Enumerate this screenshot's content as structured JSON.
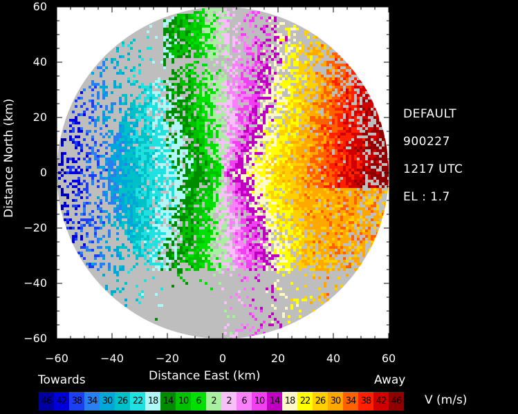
{
  "map": {
    "x_axis_label": "Distance East   (km)",
    "y_axis_label": "Distance North   (km)",
    "x_ticks": [
      "−60",
      "−40",
      "−20",
      "0",
      "20",
      "40",
      "60"
    ],
    "y_ticks": [
      "60",
      "40",
      "20",
      "0",
      "−20",
      "−40",
      "−60"
    ],
    "range_km": 60
  },
  "info": {
    "site": "DEFAULT",
    "date": "900227",
    "time": "1217 UTC",
    "elevation": "EL : 1.7"
  },
  "legend": {
    "towards_label": "Towards",
    "away_label": "Away",
    "units": "V   (m/s)",
    "entries": [
      {
        "label": "46",
        "color": "#0000a0"
      },
      {
        "label": "42",
        "color": "#0000d8"
      },
      {
        "label": "38",
        "color": "#1c40f0"
      },
      {
        "label": "34",
        "color": "#2880f0"
      },
      {
        "label": "30",
        "color": "#00a8d8"
      },
      {
        "label": "26",
        "color": "#00c0c8"
      },
      {
        "label": "22",
        "color": "#20e0e0"
      },
      {
        "label": "18",
        "color": "#b0f8f8"
      },
      {
        "label": "14",
        "color": "#008c00"
      },
      {
        "label": "10",
        "color": "#00c000"
      },
      {
        "label": "6",
        "color": "#00e000"
      },
      {
        "label": "2",
        "color": "#a8f0a0"
      },
      {
        "label": "2",
        "color": "#f8c0f8"
      },
      {
        "label": "6",
        "color": "#f880f8"
      },
      {
        "label": "10",
        "color": "#f040f0"
      },
      {
        "label": "14",
        "color": "#c000c0"
      },
      {
        "label": "18",
        "color": "#fff8c8"
      },
      {
        "label": "22",
        "color": "#ffff00"
      },
      {
        "label": "26",
        "color": "#ffd000"
      },
      {
        "label": "30",
        "color": "#ffa800"
      },
      {
        "label": "34",
        "color": "#ff6000"
      },
      {
        "label": "38",
        "color": "#ff2000"
      },
      {
        "label": "42",
        "color": "#d00000"
      },
      {
        "label": "46",
        "color": "#900000"
      }
    ]
  }
}
